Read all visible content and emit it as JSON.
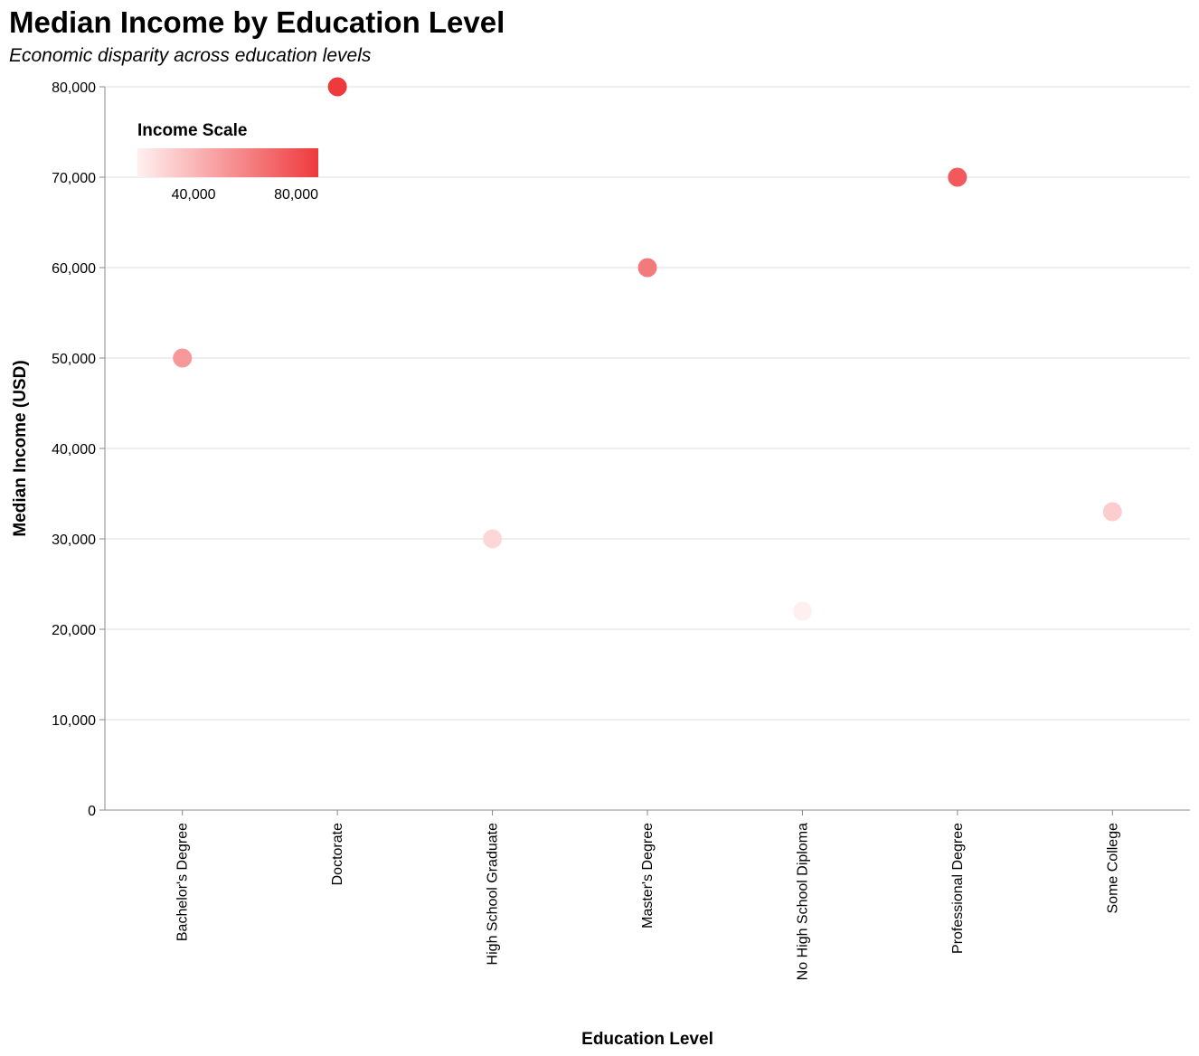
{
  "chart_data": {
    "type": "scatter",
    "title": "Median Income by Education Level",
    "subtitle": "Economic disparity across education levels",
    "xlabel": "Education Level",
    "ylabel": "Median Income (USD)",
    "categories": [
      "Bachelor's Degree",
      "Doctorate",
      "High School Graduate",
      "Master's Degree",
      "No High School Diploma",
      "Professional Degree",
      "Some College"
    ],
    "values": [
      50000,
      80000,
      30000,
      60000,
      22000,
      70000,
      33000
    ],
    "ylim": [
      0,
      80000
    ],
    "y_ticks": [
      0,
      10000,
      20000,
      30000,
      40000,
      50000,
      60000,
      70000,
      80000
    ],
    "y_tick_labels": [
      "0",
      "10,000",
      "20,000",
      "30,000",
      "40,000",
      "50,000",
      "60,000",
      "70,000",
      "80,000"
    ],
    "grid": true,
    "legend": {
      "title": "Income Scale",
      "placement": "top-left",
      "domain": [
        22000,
        80000
      ],
      "ticks": [
        40000,
        80000
      ],
      "tick_labels": [
        "40,000",
        "80,000"
      ]
    },
    "colors": {
      "low": "#fff0f0",
      "high": "#ee3a3d",
      "grid": "#dddddd",
      "axis": "#888888"
    }
  }
}
